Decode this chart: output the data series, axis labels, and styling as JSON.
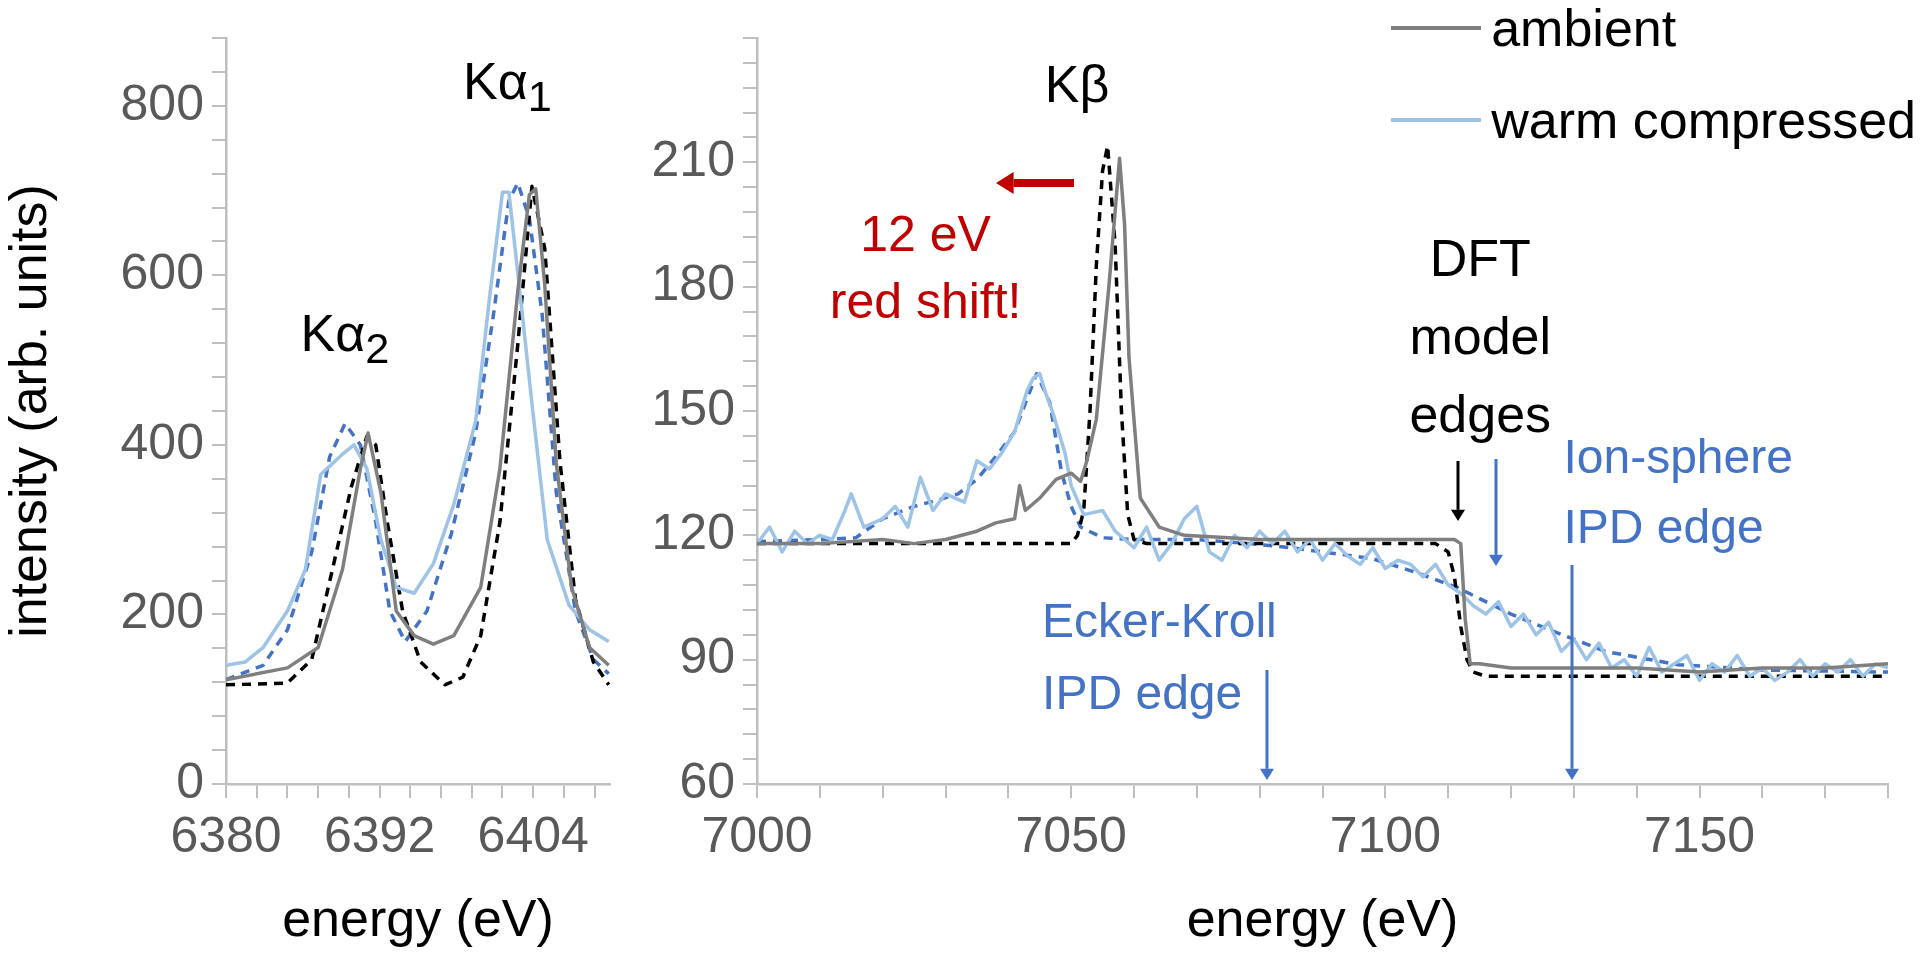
{
  "chart_data": [
    {
      "type": "line",
      "xlabel": "energy (eV)",
      "ylabel": "intensity (arb. units)",
      "xlim": [
        6380,
        6410
      ],
      "xticks": [
        6380,
        {
          "value": 6382.4,
          "label": null
        },
        {
          "value": 6384.8,
          "label": null
        },
        {
          "value": 6387.2,
          "label": null
        },
        {
          "value": 6389.6,
          "label": null
        },
        6392,
        {
          "value": 6394.4,
          "label": null
        },
        {
          "value": 6396.8,
          "label": null
        },
        {
          "value": 6399.2,
          "label": null
        },
        {
          "value": 6401.6,
          "label": null
        },
        6404,
        {
          "value": 6406.4,
          "label": null
        },
        {
          "value": 6408.8,
          "label": null
        }
      ],
      "ylim": [
        0,
        880
      ],
      "yticks": [
        0,
        {
          "value": 40,
          "label": null
        },
        {
          "value": 80,
          "label": null
        },
        {
          "value": 120,
          "label": null
        },
        {
          "value": 160,
          "label": null
        },
        200,
        {
          "value": 240,
          "label": null
        },
        {
          "value": 280,
          "label": null
        },
        {
          "value": 320,
          "label": null
        },
        {
          "value": 360,
          "label": null
        },
        400,
        {
          "value": 440,
          "label": null
        },
        {
          "value": 480,
          "label": null
        },
        {
          "value": 520,
          "label": null
        },
        {
          "value": 560,
          "label": null
        },
        600,
        {
          "value": 640,
          "label": null
        },
        {
          "value": 680,
          "label": null
        },
        {
          "value": 720,
          "label": null
        },
        {
          "value": 760,
          "label": null
        },
        800,
        {
          "value": 840,
          "label": null
        },
        {
          "value": 880,
          "label": null
        }
      ],
      "series": [
        {
          "color": "#7f7f7f",
          "x": [
            6380,
            6384.8,
            6387.2,
            6389.1,
            6390.5,
            6391.1,
            6392.1,
            6393.3,
            6394.7,
            6396.2,
            6397.8,
            6399.9,
            6401.4,
            6402.8,
            6403.7,
            6404.2,
            6404.9,
            6405.8,
            6407,
            6408.4,
            6409.9
          ],
          "values": [
            123,
            137,
            161,
            253,
            372,
            414,
            344,
            204,
            175,
            165,
            175,
            232,
            372,
            582,
            695,
            702,
            589,
            379,
            232,
            161,
            140
          ]
        },
        {
          "color": "#9dc3e6",
          "x": [
            6380,
            6381.5,
            6382.9,
            6384.8,
            6386.2,
            6387.4,
            6389.1,
            6390,
            6391,
            6392.1,
            6393.3,
            6394.7,
            6396.2,
            6397.8,
            6399.5,
            6400.6,
            6401.6,
            6402.1,
            6403,
            6403.9,
            6405.1,
            6406.8,
            6408.4,
            6409.9
          ],
          "values": [
            140,
            144,
            161,
            204,
            253,
            365,
            389,
            400,
            372,
            288,
            232,
            225,
            260,
            330,
            428,
            575,
            698,
            698,
            575,
            449,
            288,
            211,
            182,
            168
          ]
        },
        {
          "color": "#000000",
          "line_style": "dashed",
          "x": [
            6380,
            6384.8,
            6386.7,
            6388.1,
            6389.8,
            6391,
            6391.7,
            6392.6,
            6393.8,
            6395.2,
            6397.1,
            6398.5,
            6399.9,
            6401.4,
            6402.8,
            6403.9,
            6404.9,
            6406.1,
            6407.3,
            6408.7,
            6409.9
          ],
          "values": [
            117,
            119,
            147,
            239,
            351,
            410,
            400,
            309,
            204,
            144,
            117,
            126,
            175,
            309,
            519,
            705,
            632,
            379,
            218,
            144,
            117
          ]
        },
        {
          "color": "#4472c4",
          "line_style": "dashed",
          "x": [
            6380,
            6382.9,
            6384.8,
            6386.7,
            6388.1,
            6389.3,
            6390.5,
            6391.7,
            6392.8,
            6394,
            6395.7,
            6397.6,
            6399.5,
            6400.9,
            6402.1,
            6402.8,
            6403.7,
            6404.7,
            6405.8,
            6407.3,
            6408.7,
            6409.9
          ],
          "values": [
            123,
            140,
            182,
            274,
            386,
            425,
            400,
            309,
            204,
            168,
            204,
            295,
            414,
            554,
            688,
            709,
            667,
            554,
            344,
            204,
            147,
            130
          ]
        }
      ],
      "annotations": [
        "Kα$_{1}$",
        "Kα$_{2}$"
      ]
    },
    {
      "type": "line",
      "xlabel": "energy (eV)",
      "xlim": [
        7000,
        7180
      ],
      "xticks": [
        7000,
        {
          "value": 7010,
          "label": null
        },
        {
          "value": 7020,
          "label": null
        },
        {
          "value": 7030,
          "label": null
        },
        {
          "value": 7040,
          "label": null
        },
        7050,
        {
          "value": 7060,
          "label": null
        },
        {
          "value": 7070,
          "label": null
        },
        {
          "value": 7080,
          "label": null
        },
        {
          "value": 7090,
          "label": null
        },
        7100,
        {
          "value": 7110,
          "label": null
        },
        {
          "value": 7120,
          "label": null
        },
        {
          "value": 7130,
          "label": null
        },
        {
          "value": 7140,
          "label": null
        },
        7150,
        {
          "value": 7160,
          "label": null
        },
        {
          "value": 7170,
          "label": null
        },
        {
          "value": 7180,
          "label": null
        }
      ],
      "ylim": [
        60,
        240
      ],
      "yticks": [
        60,
        {
          "value": 66,
          "label": null
        },
        {
          "value": 72,
          "label": null
        },
        {
          "value": 78,
          "label": null
        },
        {
          "value": 84,
          "label": null
        },
        90,
        {
          "value": 96,
          "label": null
        },
        {
          "value": 102,
          "label": null
        },
        {
          "value": 108,
          "label": null
        },
        {
          "value": 114,
          "label": null
        },
        120,
        {
          "value": 126,
          "label": null
        },
        {
          "value": 132,
          "label": null
        },
        {
          "value": 138,
          "label": null
        },
        {
          "value": 144,
          "label": null
        },
        150,
        {
          "value": 156,
          "label": null
        },
        {
          "value": 162,
          "label": null
        },
        {
          "value": 168,
          "label": null
        },
        {
          "value": 174,
          "label": null
        },
        180,
        {
          "value": 186,
          "label": null
        },
        {
          "value": 192,
          "label": null
        },
        {
          "value": 198,
          "label": null
        },
        {
          "value": 204,
          "label": null
        },
        210,
        {
          "value": 216,
          "label": null
        },
        {
          "value": 222,
          "label": null
        },
        {
          "value": 228,
          "label": null
        },
        {
          "value": 234,
          "label": null
        },
        {
          "value": 240,
          "label": null
        }
      ],
      "legend": "top right",
      "series": [
        {
          "name": "ambient",
          "color": "#7f7f7f",
          "x": [
            7000,
            7010,
            7020,
            7025,
            7030,
            7035,
            7038,
            7041,
            7041.8,
            7042.7,
            7045,
            7047.6,
            7050,
            7051.5,
            7052.5,
            7054,
            7056,
            7057.7,
            7058.5,
            7059.2,
            7061,
            7064,
            7068,
            7080,
            7090,
            7100,
            7108,
            7111,
            7112,
            7112.7,
            7113.5,
            7115,
            7120,
            7130,
            7140,
            7150,
            7160,
            7170,
            7180
          ],
          "values": [
            118,
            118,
            119,
            118,
            119,
            121,
            123,
            124,
            132,
            126,
            129,
            133.5,
            135,
            133,
            138,
            148,
            180,
            211,
            195,
            163,
            129,
            122,
            120,
            119,
            119,
            119,
            119,
            119,
            118,
            100,
            89,
            89,
            88,
            88,
            88,
            87,
            88,
            88,
            89
          ]
        },
        {
          "name": "warm compressed",
          "color": "#9dc3e6",
          "x": [
            7000,
            7002,
            7004,
            7006,
            7008,
            7010,
            7012,
            7014,
            7015,
            7017,
            7020,
            7022,
            7024,
            7026,
            7028,
            7030,
            7033,
            7035,
            7037,
            7039,
            7041,
            7043,
            7044,
            7045,
            7046,
            7047,
            7049,
            7050,
            7052,
            7055,
            7057,
            7060,
            7062,
            7064,
            7066,
            7068,
            7070,
            7072,
            7074,
            7076,
            7078,
            7080,
            7082,
            7084,
            7086,
            7088,
            7090,
            7092,
            7094,
            7096,
            7098,
            7100,
            7102,
            7104,
            7106,
            7108,
            7110,
            7112,
            7114,
            7116,
            7118,
            7120,
            7122,
            7124,
            7126,
            7128,
            7130,
            7132,
            7134,
            7136,
            7138,
            7140,
            7142,
            7144,
            7146,
            7148,
            7150,
            7152,
            7154,
            7156,
            7158,
            7160,
            7162,
            7164,
            7166,
            7168,
            7170,
            7172,
            7174,
            7176,
            7178,
            7180
          ],
          "values": [
            118,
            122,
            116,
            121,
            118,
            120,
            119,
            126,
            130,
            122,
            124,
            127,
            122,
            134,
            126,
            130,
            128,
            138,
            136,
            140,
            145,
            155,
            158,
            159,
            154,
            150,
            140,
            132,
            125,
            126,
            121,
            117,
            122,
            114,
            118,
            124,
            127,
            116,
            114,
            120,
            117,
            121,
            118,
            121,
            116,
            119,
            114,
            118,
            115,
            113,
            117,
            112,
            114,
            113,
            110,
            113,
            108,
            106,
            103,
            101,
            104,
            98,
            101,
            96,
            99,
            92,
            95,
            90,
            94,
            88,
            90,
            86,
            93,
            87,
            89,
            91,
            85,
            89,
            87,
            91,
            86,
            88,
            85,
            87,
            90,
            86,
            89,
            87,
            90,
            86,
            89,
            88
          ]
        },
        {
          "color": "#000000",
          "line_style": "dashed",
          "x": [
            7000,
            7020,
            7040,
            7050,
            7051,
            7052,
            7053,
            7054,
            7055,
            7055.8,
            7057,
            7058,
            7059,
            7060,
            7062,
            7080,
            7100,
            7108,
            7110,
            7111,
            7112,
            7113,
            7114,
            7116,
            7130,
            7150,
            7180
          ],
          "values": [
            118,
            118,
            118,
            118,
            120,
            126,
            150,
            185,
            208,
            214,
            190,
            150,
            125,
            119,
            118,
            118,
            118,
            118,
            116,
            110,
            98,
            90,
            87,
            86,
            86,
            86,
            86
          ]
        },
        {
          "color": "#4472c4",
          "line_style": "dashed",
          "x": [
            7000,
            7010,
            7015.7,
            7020,
            7025,
            7029,
            7032,
            7035,
            7038,
            7041,
            7043,
            7044.5,
            7046.6,
            7048.5,
            7050,
            7051.5,
            7055,
            7060,
            7070,
            7078.5,
            7085,
            7090,
            7097.9,
            7105,
            7111.6,
            7120,
            7127,
            7135,
            7146.5,
            7160,
            7180
          ],
          "values": [
            118.5,
            119,
            119.4,
            124,
            127,
            128.6,
            130,
            133.5,
            139,
            145,
            153,
            159,
            152,
            135,
            127,
            122,
            119.4,
            119,
            119,
            118,
            117,
            116,
            114.4,
            111,
            107.3,
            101,
            96.7,
            92,
            88.8,
            87.5,
            87
          ]
        }
      ],
      "annotations": [
        "Kβ",
        "12 eV red shift!",
        "DFT model edges",
        "Ecker-Kroll IPD edge",
        "Ion-sphere IPD edge"
      ]
    }
  ]
}
